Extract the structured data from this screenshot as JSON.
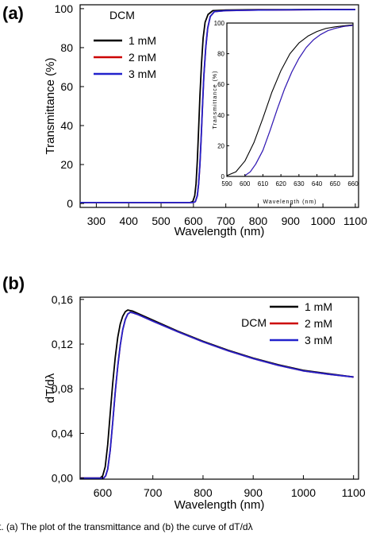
{
  "panels": {
    "a": {
      "label": "(a)"
    },
    "b": {
      "label": "(b)"
    }
  },
  "colors": {
    "1 mM": "#000000",
    "2 mM": "#cc0000",
    "3 mM": "#2222cc"
  },
  "caption": "t. (a) The plot of the transmittance and (b) the curve of dT/dλ",
  "chart_data": [
    {
      "id": "a-main",
      "type": "line",
      "annotation": "DCM",
      "xlabel": "Wavelength (nm)",
      "ylabel": "Transmittance (%)",
      "xlim": [
        250,
        1110
      ],
      "ylim": [
        -2,
        102
      ],
      "xticks": [
        "300",
        "400",
        "500",
        "600",
        "700",
        "800",
        "900",
        "1000",
        "1100"
      ],
      "yticks": [
        "0",
        "20",
        "40",
        "60",
        "80",
        "100"
      ],
      "legend": "top-left",
      "series": [
        {
          "name": "1 mM",
          "x": [
            250,
            590,
            598,
            604,
            608,
            612,
            616,
            620,
            625,
            630,
            636,
            645,
            660,
            700,
            800,
            900,
            1000,
            1100
          ],
          "y": [
            0.5,
            0.5,
            1,
            4,
            10,
            22,
            38,
            55,
            72,
            85,
            93,
            97,
            99,
            99.3,
            99.5,
            99.5,
            99.6,
            99.6
          ]
        },
        {
          "name": "2 mM",
          "x": [
            250,
            600,
            606,
            612,
            616,
            620,
            624,
            628,
            632,
            638,
            644,
            652,
            665,
            700,
            800,
            900,
            1000,
            1100
          ],
          "y": [
            0.5,
            0.5,
            1,
            4,
            10,
            20,
            34,
            50,
            65,
            80,
            90,
            96,
            98.5,
            99,
            99.3,
            99.4,
            99.5,
            99.5
          ]
        },
        {
          "name": "3 mM",
          "x": [
            250,
            600,
            606,
            612,
            616,
            620,
            624,
            628,
            632,
            638,
            644,
            652,
            665,
            700,
            800,
            900,
            1000,
            1100
          ],
          "y": [
            0.5,
            0.5,
            1,
            4,
            10,
            20,
            34,
            50,
            65,
            80,
            90,
            96,
            98.5,
            99,
            99.3,
            99.4,
            99.5,
            99.5
          ]
        }
      ]
    },
    {
      "id": "a-inset",
      "type": "line",
      "xlabel": "Wavelength (nm)",
      "ylabel": "Transmittance (%)",
      "xlim": [
        590,
        660
      ],
      "ylim": [
        0,
        100
      ],
      "xticks": [
        "590",
        "600",
        "610",
        "620",
        "630",
        "640",
        "650",
        "660"
      ],
      "yticks": [
        "0",
        "20",
        "40",
        "60",
        "80",
        "100"
      ],
      "series": [
        {
          "name": "1 mM",
          "x": [
            590,
            595,
            600,
            605,
            610,
            615,
            620,
            625,
            630,
            635,
            640,
            645,
            650,
            655,
            660
          ],
          "y": [
            0.5,
            3,
            10,
            22,
            38,
            55,
            69,
            80,
            87,
            91.5,
            94.5,
            96.5,
            97.5,
            98.2,
            98.8
          ]
        },
        {
          "name": "2 mM",
          "x": [
            600,
            603,
            606,
            610,
            614,
            618,
            622,
            626,
            630,
            634,
            638,
            642,
            646,
            650,
            655,
            660
          ],
          "y": [
            0.5,
            3,
            8,
            17,
            30,
            44,
            57,
            68,
            77,
            84,
            89,
            92.5,
            95,
            96.5,
            97.8,
            98.5
          ]
        },
        {
          "name": "3 mM",
          "x": [
            600,
            603,
            606,
            610,
            614,
            618,
            622,
            626,
            630,
            634,
            638,
            642,
            646,
            650,
            655,
            660
          ],
          "y": [
            0.5,
            3,
            8,
            17,
            30,
            44,
            57,
            68,
            77,
            84,
            89,
            92.5,
            95,
            96.5,
            97.8,
            98.5
          ]
        }
      ]
    },
    {
      "id": "b-main",
      "type": "line",
      "annotation": "DCM",
      "xlabel": "Wavelength (nm)",
      "ylabel": "dT/dλ",
      "xlim": [
        555,
        1110
      ],
      "ylim": [
        -0.001,
        0.162
      ],
      "xticks": [
        "600",
        "700",
        "800",
        "900",
        "1000",
        "1100"
      ],
      "yticks": [
        "0,00",
        "0,04",
        "0,08",
        "0,12",
        "0,16"
      ],
      "legend": "top-right",
      "series": [
        {
          "name": "1 mM",
          "x": [
            555,
            595,
            600,
            605,
            610,
            615,
            620,
            625,
            630,
            635,
            640,
            645,
            650,
            655,
            660,
            680,
            700,
            750,
            800,
            850,
            900,
            950,
            1000,
            1050,
            1100
          ],
          "y": [
            0,
            0,
            0.002,
            0.01,
            0.03,
            0.058,
            0.085,
            0.108,
            0.126,
            0.138,
            0.145,
            0.149,
            0.1505,
            0.15,
            0.1495,
            0.1455,
            0.1415,
            0.1315,
            0.1225,
            0.1145,
            0.1075,
            0.1015,
            0.0965,
            0.0935,
            0.0905
          ]
        },
        {
          "name": "2 mM",
          "x": [
            555,
            602,
            606,
            610,
            615,
            620,
            625,
            630,
            635,
            640,
            645,
            650,
            655,
            660,
            670,
            680,
            700,
            750,
            800,
            850,
            900,
            950,
            1000,
            1050,
            1100
          ],
          "y": [
            0,
            0,
            0.002,
            0.008,
            0.025,
            0.05,
            0.077,
            0.1,
            0.119,
            0.133,
            0.142,
            0.147,
            0.1485,
            0.148,
            0.1465,
            0.1445,
            0.1405,
            0.131,
            0.122,
            0.114,
            0.107,
            0.101,
            0.096,
            0.093,
            0.0905
          ]
        },
        {
          "name": "3 mM",
          "x": [
            555,
            602,
            606,
            610,
            615,
            620,
            625,
            630,
            635,
            640,
            645,
            650,
            655,
            660,
            670,
            680,
            700,
            750,
            800,
            850,
            900,
            950,
            1000,
            1050,
            1100
          ],
          "y": [
            0,
            0,
            0.002,
            0.008,
            0.025,
            0.05,
            0.077,
            0.1,
            0.119,
            0.133,
            0.142,
            0.147,
            0.1485,
            0.148,
            0.1465,
            0.1445,
            0.1405,
            0.131,
            0.122,
            0.114,
            0.107,
            0.101,
            0.096,
            0.093,
            0.0905
          ]
        }
      ]
    }
  ]
}
